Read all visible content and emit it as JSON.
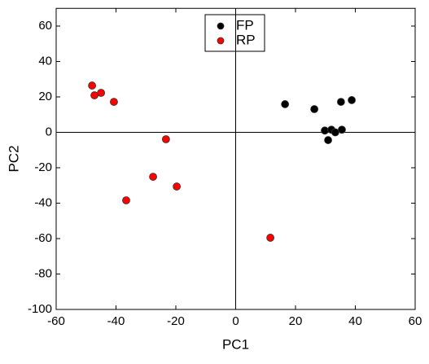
{
  "chart_data": {
    "type": "scatter",
    "x_label": "PC1",
    "y_label": "PC2",
    "xlim": [
      -60,
      60
    ],
    "xticks": [
      -60,
      -40,
      -20,
      0,
      20,
      40,
      60
    ],
    "ylim": [
      -100,
      70
    ],
    "yticks": [
      -100,
      -80,
      -60,
      -40,
      -20,
      0,
      20,
      40,
      60
    ],
    "legend": "top-center",
    "series": [
      {
        "name": "FP",
        "color": "#000000",
        "x": [
          16.5,
          26.3,
          35.2,
          38.8,
          29.8,
          32,
          33.3,
          35.5,
          30.9
        ],
        "values": [
          15.9,
          13.1,
          17.2,
          18.2,
          1,
          1.5,
          0,
          1.5,
          -4.4
        ]
      },
      {
        "name": "RP",
        "color": "#ff0000",
        "x": [
          -48,
          -47.2,
          -45,
          -40.7,
          -23.3,
          -27.6,
          -19.7,
          -36.6,
          11.6
        ],
        "values": [
          26.4,
          20.9,
          22.3,
          17.2,
          -3.9,
          -25.1,
          -30.6,
          -38.4,
          -59.5
        ]
      }
    ]
  }
}
